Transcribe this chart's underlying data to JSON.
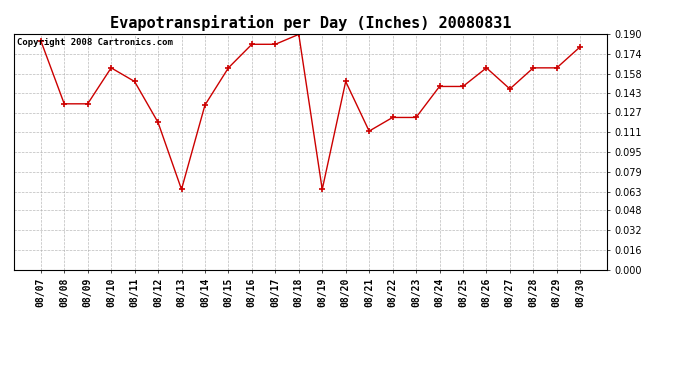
{
  "title": "Evapotranspiration per Day (Inches) 20080831",
  "copyright_text": "Copyright 2008 Cartronics.com",
  "x_labels": [
    "08/07",
    "08/08",
    "08/09",
    "08/10",
    "08/11",
    "08/12",
    "08/13",
    "08/14",
    "08/15",
    "08/16",
    "08/17",
    "08/18",
    "08/19",
    "08/20",
    "08/21",
    "08/22",
    "08/23",
    "08/24",
    "08/25",
    "08/26",
    "08/27",
    "08/28",
    "08/29",
    "08/30"
  ],
  "y_values": [
    0.185,
    0.134,
    0.134,
    0.163,
    0.152,
    0.119,
    0.065,
    0.133,
    0.163,
    0.182,
    0.182,
    0.19,
    0.065,
    0.152,
    0.112,
    0.123,
    0.123,
    0.148,
    0.148,
    0.163,
    0.146,
    0.163,
    0.163,
    0.18
  ],
  "line_color": "#cc0000",
  "marker": "+",
  "marker_size": 4,
  "marker_color": "#cc0000",
  "bg_color": "#ffffff",
  "plot_bg_color": "#ffffff",
  "grid_color": "#aaaaaa",
  "ylim": [
    0.0,
    0.19
  ],
  "yticks": [
    0.0,
    0.016,
    0.032,
    0.048,
    0.063,
    0.079,
    0.095,
    0.111,
    0.127,
    0.143,
    0.158,
    0.174,
    0.19
  ],
  "title_fontsize": 11,
  "tick_fontsize": 7,
  "copyright_fontsize": 6.5
}
